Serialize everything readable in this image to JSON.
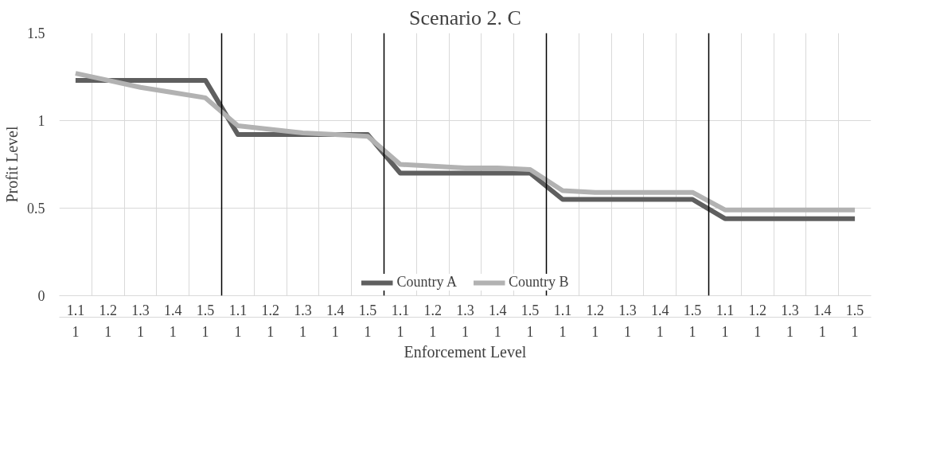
{
  "chart_data": {
    "type": "line",
    "title": "Scenario 2. C",
    "xlabel": "Enforcement Level",
    "ylabel": "Profit Level",
    "categories": [
      "1.1\n1",
      "1.2\n1",
      "1.3\n1",
      "1.4\n1",
      "1.5\n1",
      "1.1\n1",
      "1.2\n1",
      "1.3\n1",
      "1.4\n1",
      "1.5\n1",
      "1.1\n1",
      "1.2\n1",
      "1.3\n1",
      "1.4\n1",
      "1.5\n1",
      "1.1\n1",
      "1.2\n1",
      "1.3\n1",
      "1.4\n1",
      "1.5\n1",
      "1.1\n1",
      "1.2\n1",
      "1.3\n1",
      "1.4\n1",
      "1.5\n1"
    ],
    "series": [
      {
        "name": "Country A",
        "color": "#5f5f5f",
        "values": [
          1.23,
          1.23,
          1.23,
          1.23,
          1.23,
          0.92,
          0.92,
          0.92,
          0.92,
          0.92,
          0.7,
          0.7,
          0.7,
          0.7,
          0.7,
          0.55,
          0.55,
          0.55,
          0.55,
          0.55,
          0.44,
          0.44,
          0.44,
          0.44,
          0.44
        ]
      },
      {
        "name": "Country B",
        "color": "#b2b2b2",
        "values": [
          1.27,
          1.23,
          1.19,
          1.16,
          1.13,
          0.97,
          0.95,
          0.93,
          0.92,
          0.91,
          0.75,
          0.74,
          0.73,
          0.73,
          0.72,
          0.6,
          0.59,
          0.59,
          0.59,
          0.59,
          0.49,
          0.49,
          0.49,
          0.49,
          0.49
        ]
      }
    ],
    "ylim": [
      0,
      1.5
    ],
    "yticks": [
      0,
      0.5,
      1,
      1.5
    ],
    "grid": true,
    "legend": "bottom",
    "marker": "none",
    "line_style": "solid"
  }
}
